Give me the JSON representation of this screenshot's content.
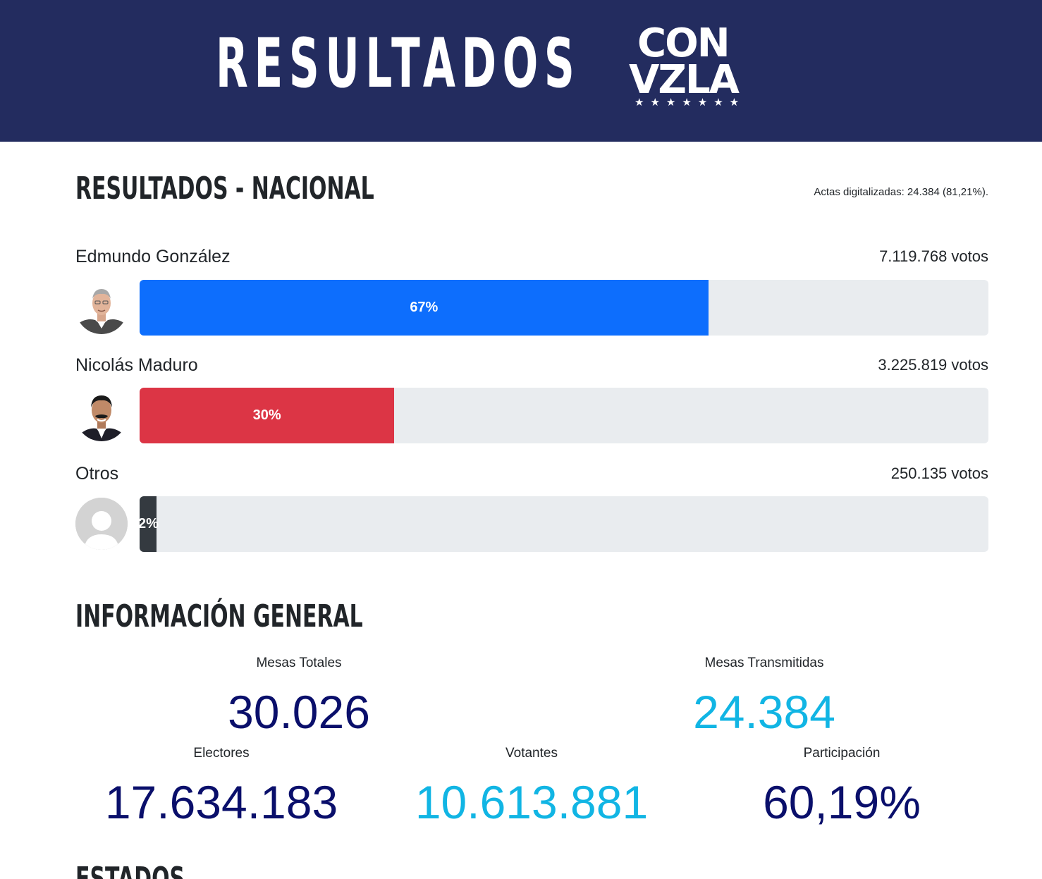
{
  "header": {
    "title": "RESULTADOS",
    "logo": {
      "line1": "CON",
      "line2": "VZLA",
      "stars": "★★★★★★★"
    }
  },
  "national": {
    "title": "RESULTADOS - NACIONAL",
    "actas": "Actas digitalizadas: 24.384 (81,21%).",
    "candidates": [
      {
        "name": "Edmundo González",
        "votes": "7.119.768 votos",
        "percent_label": "67%",
        "percent": 67,
        "color": "#0d6efd"
      },
      {
        "name": "Nicolás Maduro",
        "votes": "3.225.819 votos",
        "percent_label": "30%",
        "percent": 30,
        "color": "#dc3545"
      },
      {
        "name": "Otros",
        "votes": "250.135 votos",
        "percent_label": "2%",
        "percent": 2,
        "color": "#343a40"
      }
    ]
  },
  "general": {
    "title": "INFORMACIÓN GENERAL",
    "mesas_totales": {
      "label": "Mesas Totales",
      "value": "30.026"
    },
    "mesas_transmitidas": {
      "label": "Mesas Transmitidas",
      "value": "24.384"
    },
    "electores": {
      "label": "Electores",
      "value": "17.634.183"
    },
    "votantes": {
      "label": "Votantes",
      "value": "10.613.881"
    },
    "participacion": {
      "label": "Participación",
      "value": "60,19%"
    }
  },
  "estados": {
    "title": "ESTADOS"
  },
  "colors": {
    "header_bg": "#232c5f",
    "navy": "#0a0f6b",
    "cyan": "#11b5e4"
  }
}
